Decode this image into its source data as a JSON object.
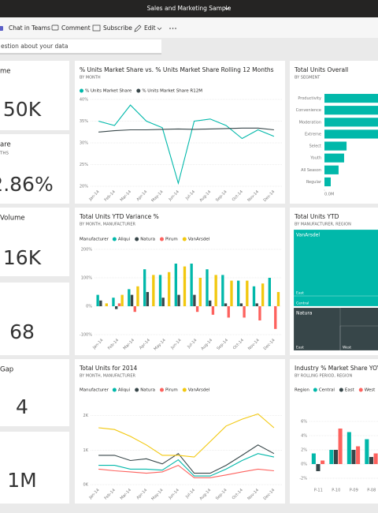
{
  "header": {
    "title": "Sales and Marketing Sample"
  },
  "toolbar": {
    "items": [
      "Chat in Teams",
      "Comment",
      "Subscribe",
      "Edit"
    ]
  },
  "qa": {
    "placeholder": "estion about your data"
  },
  "cards": [
    {
      "title": "me",
      "value": "50K"
    },
    {
      "title": "are",
      "subtitle": "THS",
      "value": "2.86%"
    },
    {
      "title": "Volume",
      "value": "16K"
    },
    {
      "value": "68"
    },
    {
      "title": "Gap",
      "value": "4"
    },
    {
      "value": "1M"
    }
  ],
  "chart_data": [
    {
      "type": "line",
      "title": "% Units Market Share vs. % Units Market Share Rolling 12 Months",
      "subtitle": "BY MONTH",
      "categories": [
        "Jan-14",
        "Feb-14",
        "Mar-14",
        "Apr-14",
        "May-14",
        "Jun-14",
        "Jul-14",
        "Aug-14",
        "Sep-14",
        "Oct-14",
        "Nov-14",
        "Dec-14"
      ],
      "series": [
        {
          "name": "% Units Market Share",
          "color": "#01b8aa",
          "values": [
            35,
            34,
            38.7,
            35,
            33.5,
            20.7,
            35,
            35.5,
            34,
            31,
            33,
            31.5
          ]
        },
        {
          "name": "% Units Market Share R12M",
          "color": "#374649",
          "values": [
            32.5,
            32.8,
            33,
            33,
            33.1,
            33.2,
            33.1,
            33.2,
            33.3,
            33.4,
            33.4,
            33
          ]
        }
      ],
      "ylim": [
        20,
        40
      ],
      "yticks": [
        {
          "value": 20,
          "label": "20%"
        },
        {
          "value": 25,
          "label": "25%"
        },
        {
          "value": 30,
          "label": "30%"
        },
        {
          "value": 35,
          "label": "35%"
        },
        {
          "value": 40,
          "label": "40%"
        }
      ],
      "grid": true
    },
    {
      "type": "bar",
      "title": "Total Units YTD Variance %",
      "subtitle": "BY MONTH, MANUFACTURER",
      "legend_title": "Manufacturer",
      "categories": [
        "Jan-14",
        "Feb-14",
        "Mar-14",
        "Apr-14",
        "May-14",
        "Jun-14",
        "Jul-14",
        "Aug-14",
        "Sep-14",
        "Oct-14",
        "Nov-14",
        "Dec-14"
      ],
      "series": [
        {
          "name": "Aliqui",
          "color": "#01b8aa",
          "values": [
            40,
            30,
            60,
            130,
            110,
            150,
            150,
            130,
            110,
            90,
            70,
            100
          ]
        },
        {
          "name": "Natura",
          "color": "#374649",
          "values": [
            20,
            -10,
            40,
            50,
            30,
            40,
            40,
            20,
            10,
            10,
            10,
            0
          ]
        },
        {
          "name": "Pirum",
          "color": "#fd625e",
          "values": [
            0,
            10,
            -20,
            0,
            0,
            0,
            -20,
            -30,
            -40,
            -40,
            -50,
            -80
          ]
        },
        {
          "name": "VanArsdel",
          "color": "#f2c80f",
          "values": [
            10,
            40,
            70,
            110,
            120,
            140,
            100,
            110,
            90,
            90,
            80,
            50
          ]
        }
      ],
      "ylim": [
        -100,
        200
      ],
      "yticks": [
        {
          "value": -100,
          "label": "-100%"
        },
        {
          "value": 0,
          "label": "0%"
        },
        {
          "value": 100,
          "label": "100%"
        },
        {
          "value": 200,
          "label": "200%"
        }
      ],
      "grid": true
    },
    {
      "type": "line",
      "title": "Total Units for 2014",
      "subtitle": "BY MONTH, MANUFACTURER",
      "legend_title": "Manufacturer",
      "categories": [
        "Jan-14",
        "Feb-14",
        "Mar-14",
        "Apr-14",
        "May-14",
        "Jun-14",
        "Jul-14",
        "Aug-14",
        "Sep-14",
        "Oct-14",
        "Nov-14",
        "Dec-14"
      ],
      "series": [
        {
          "name": "Aliqui",
          "color": "#01b8aa",
          "values": [
            560,
            560,
            450,
            450,
            420,
            720,
            250,
            250,
            450,
            700,
            900,
            800
          ]
        },
        {
          "name": "Natura",
          "color": "#374649",
          "values": [
            850,
            850,
            700,
            750,
            600,
            900,
            330,
            330,
            560,
            850,
            1150,
            900
          ]
        },
        {
          "name": "Pirum",
          "color": "#fd625e",
          "values": [
            450,
            400,
            370,
            330,
            370,
            560,
            200,
            200,
            280,
            370,
            450,
            400
          ]
        },
        {
          "name": "VanArsdel",
          "color": "#f2c80f",
          "values": [
            1650,
            1600,
            1400,
            1150,
            850,
            850,
            800,
            1250,
            1700,
            1900,
            2050,
            1650
          ]
        }
      ],
      "ylim": [
        0,
        2200
      ],
      "yticks": [
        {
          "value": 0,
          "label": "0K"
        },
        {
          "value": 1000,
          "label": "1K"
        },
        {
          "value": 2000,
          "label": "2K"
        }
      ],
      "grid": true
    },
    {
      "type": "bar",
      "orientation": "horizontal",
      "title": "Total Units Overall",
      "subtitle": "BY SEGMENT",
      "categories": [
        "Productivity",
        "Convenience",
        "Moderation",
        "Extreme",
        "Select",
        "Youth",
        "All Season",
        "Regular"
      ],
      "values": [
        0.38,
        0.37,
        0.36,
        0.35,
        0.144,
        0.128,
        0.092,
        0.041
      ],
      "color": "#01b8aa",
      "xlim": [
        0,
        0.4
      ],
      "xticks": [
        {
          "value": 0,
          "label": "0.0M"
        }
      ]
    },
    {
      "type": "treemap",
      "title": "Total Units YTD",
      "subtitle": "BY MANUFACTURER, REGION",
      "nodes": [
        {
          "name": "VanArsdel",
          "color": "#01b8aa",
          "children": [
            "East",
            "Central"
          ]
        },
        {
          "name": "Natura",
          "color": "#374649",
          "children": [
            "East",
            "West"
          ]
        }
      ]
    },
    {
      "type": "bar",
      "title": "Industry % Market Share YOY C",
      "subtitle": "BY ROLLING PERIOD, REGION",
      "legend_title": "Region",
      "categories": [
        "P-11",
        "P-10",
        "P-09",
        "P-08"
      ],
      "series": [
        {
          "name": "Central",
          "color": "#01b8aa",
          "values": [
            1.5,
            2,
            4.5,
            3.5
          ]
        },
        {
          "name": "East",
          "color": "#374649",
          "values": [
            -1,
            2,
            2,
            1
          ]
        },
        {
          "name": "West",
          "color": "#fd625e",
          "values": [
            0.5,
            5,
            2.5,
            1.5
          ]
        }
      ],
      "ylim": [
        -3,
        7
      ],
      "yticks": [
        {
          "value": -2,
          "label": "-2%"
        },
        {
          "value": 0,
          "label": "0%"
        },
        {
          "value": 2,
          "label": "2%"
        },
        {
          "value": 4,
          "label": "4%"
        },
        {
          "value": 6,
          "label": "6%"
        }
      ],
      "grid": true
    }
  ]
}
